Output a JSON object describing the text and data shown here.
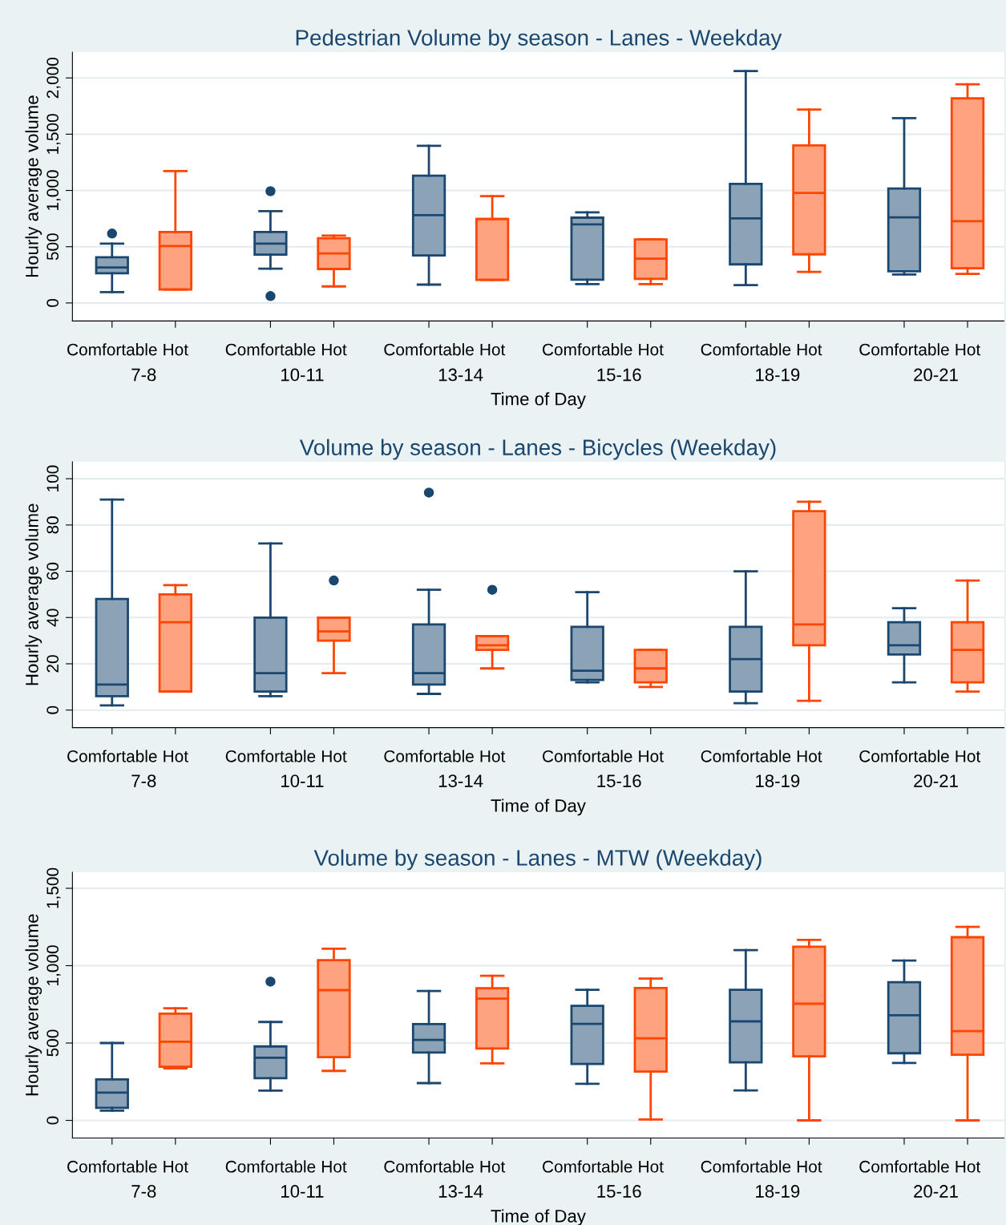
{
  "chart_data": [
    {
      "type": "box",
      "title": "Pedestrian Volume by season - Lanes - Weekday",
      "xlabel": "Time of Day",
      "ylabel": "Hourly average volume",
      "categories": [
        "Comfortable",
        "Hot",
        "Comfortable",
        "Hot",
        "Comfortable",
        "Hot",
        "Comfortable",
        "Hot",
        "Comfortable",
        "Hot",
        "Comfortable",
        "Hot"
      ],
      "annotations": [
        "7-8",
        "10-11",
        "13-14",
        "15-16",
        "18-19",
        "20-21"
      ],
      "ylim": [
        -160,
        2230
      ],
      "yticks": [
        0,
        500,
        {
          "value": 1000,
          "label": "1,000"
        },
        {
          "value": 1500,
          "label": "1,500"
        },
        {
          "value": 2000,
          "label": "2,000"
        }
      ],
      "grid": "y",
      "colors": [
        "#1a476f",
        "#ff4500",
        "#1a476f",
        "#ff4500",
        "#1a476f",
        "#ff4500",
        "#1a476f",
        "#ff4500",
        "#1a476f",
        "#ff4500",
        "#1a476f",
        "#ff4500"
      ],
      "boxes": [
        {
          "low": 97,
          "q1": 263,
          "median": 315,
          "q3": 407,
          "high": 528,
          "outliers": [
            617
          ]
        },
        {
          "low": 119,
          "q1": 119,
          "median": 506,
          "q3": 631,
          "high": 1173
        },
        {
          "low": 304,
          "q1": 429,
          "median": 528,
          "q3": 631,
          "high": 816,
          "outliers": [
            993,
            61
          ]
        },
        {
          "low": 147,
          "q1": 302,
          "median": 440,
          "q3": 575,
          "high": 598
        },
        {
          "low": 163,
          "q1": 423,
          "median": 780,
          "q3": 1131,
          "high": 1397
        },
        {
          "low": 205,
          "q1": 205,
          "median": 747,
          "q3": 747,
          "high": 949
        },
        {
          "low": 167,
          "q1": 206,
          "median": 699,
          "q3": 758,
          "high": 805
        },
        {
          "low": 167,
          "q1": 214,
          "median": 393,
          "q3": 564,
          "high": 564
        },
        {
          "low": 159,
          "q1": 343,
          "median": 752,
          "q3": 1058,
          "high": 2061
        },
        {
          "low": 276,
          "q1": 432,
          "median": 978,
          "q3": 1401,
          "high": 1719
        },
        {
          "low": 253,
          "q1": 281,
          "median": 760,
          "q3": 1017,
          "high": 1643
        },
        {
          "low": 259,
          "q1": 309,
          "median": 727,
          "q3": 1819,
          "high": 1944
        }
      ]
    },
    {
      "type": "box",
      "title": "Volume by season - Lanes - Bicycles (Weekday)",
      "xlabel": "Time of Day",
      "ylabel": "Hourly average volume",
      "categories": [
        "Comfortable",
        "Hot",
        "Comfortable",
        "Hot",
        "Comfortable",
        "Hot",
        "Comfortable",
        "Hot",
        "Comfortable",
        "Hot",
        "Comfortable",
        "Hot"
      ],
      "annotations": [
        "7-8",
        "10-11",
        "13-14",
        "15-16",
        "18-19",
        "20-21"
      ],
      "ylim": [
        -7.6,
        107.3
      ],
      "yticks": [
        0,
        20,
        40,
        60,
        80,
        100
      ],
      "grid": "y",
      "colors": [
        "#1a476f",
        "#ff4500",
        "#1a476f",
        "#ff4500",
        "#1a476f",
        "#ff4500",
        "#1a476f",
        "#ff4500",
        "#1a476f",
        "#ff4500",
        "#1a476f",
        "#ff4500"
      ],
      "boxes": [
        {
          "low": 2,
          "q1": 6,
          "median": 11,
          "q3": 48,
          "high": 91
        },
        {
          "low": 8,
          "q1": 8,
          "median": 38,
          "q3": 50,
          "high": 54
        },
        {
          "low": 6,
          "q1": 8,
          "median": 16,
          "q3": 40,
          "high": 72
        },
        {
          "low": 16,
          "q1": 30,
          "median": 34,
          "q3": 40,
          "high": 40,
          "outliers": [
            56
          ]
        },
        {
          "low": 7,
          "q1": 11,
          "median": 16,
          "q3": 37,
          "high": 52,
          "outliers": [
            94
          ]
        },
        {
          "low": 18,
          "q1": 26,
          "median": 28,
          "q3": 32,
          "high": 32,
          "outliers": [
            52
          ]
        },
        {
          "low": 12,
          "q1": 13,
          "median": 17,
          "q3": 36,
          "high": 51
        },
        {
          "low": 10,
          "q1": 12,
          "median": 18,
          "q3": 26,
          "high": 26
        },
        {
          "low": 3,
          "q1": 8,
          "median": 22,
          "q3": 36,
          "high": 60
        },
        {
          "low": 4,
          "q1": 28,
          "median": 37,
          "q3": 86,
          "high": 90
        },
        {
          "low": 12,
          "q1": 24,
          "median": 28,
          "q3": 38,
          "high": 44
        },
        {
          "low": 8,
          "q1": 12,
          "median": 26,
          "q3": 38,
          "high": 56
        }
      ]
    },
    {
      "type": "box",
      "title": "Volume by season - Lanes - MTW (Weekday)",
      "xlabel": "Time of Day",
      "ylabel": "Hourly average volume",
      "categories": [
        "Comfortable",
        "Hot",
        "Comfortable",
        "Hot",
        "Comfortable",
        "Hot",
        "Comfortable",
        "Hot",
        "Comfortable",
        "Hot",
        "Comfortable",
        "Hot"
      ],
      "annotations": [
        "7-8",
        "10-11",
        "13-14",
        "15-16",
        "18-19",
        "20-21"
      ],
      "ylim": [
        -114,
        1604
      ],
      "yticks": [
        0,
        500,
        {
          "value": 1000,
          "label": "1,000"
        },
        {
          "value": 1500,
          "label": "1,500"
        }
      ],
      "grid": "y",
      "colors": [
        "#1a476f",
        "#ff4500",
        "#1a476f",
        "#ff4500",
        "#1a476f",
        "#ff4500",
        "#1a476f",
        "#ff4500",
        "#1a476f",
        "#ff4500",
        "#1a476f",
        "#ff4500"
      ],
      "boxes": [
        {
          "low": 63,
          "q1": 81,
          "median": 180,
          "q3": 265,
          "high": 500
        },
        {
          "low": 336,
          "q1": 346,
          "median": 508,
          "q3": 690,
          "high": 725
        },
        {
          "low": 192,
          "q1": 273,
          "median": 405,
          "q3": 478,
          "high": 636,
          "outliers": [
            897
          ]
        },
        {
          "low": 320,
          "q1": 409,
          "median": 842,
          "q3": 1036,
          "high": 1109
        },
        {
          "low": 241,
          "q1": 439,
          "median": 520,
          "q3": 623,
          "high": 836
        },
        {
          "low": 368,
          "q1": 464,
          "median": 787,
          "q3": 854,
          "high": 935
        },
        {
          "low": 236,
          "q1": 365,
          "median": 624,
          "q3": 740,
          "high": 844
        },
        {
          "low": 6,
          "q1": 316,
          "median": 530,
          "q3": 856,
          "high": 917
        },
        {
          "low": 194,
          "q1": 375,
          "median": 640,
          "q3": 844,
          "high": 1100
        },
        {
          "low": 0,
          "q1": 414,
          "median": 754,
          "q3": 1123,
          "high": 1166
        },
        {
          "low": 371,
          "q1": 434,
          "median": 679,
          "q3": 893,
          "high": 1033
        },
        {
          "low": 0,
          "q1": 424,
          "median": 577,
          "q3": 1184,
          "high": 1251
        }
      ]
    }
  ]
}
